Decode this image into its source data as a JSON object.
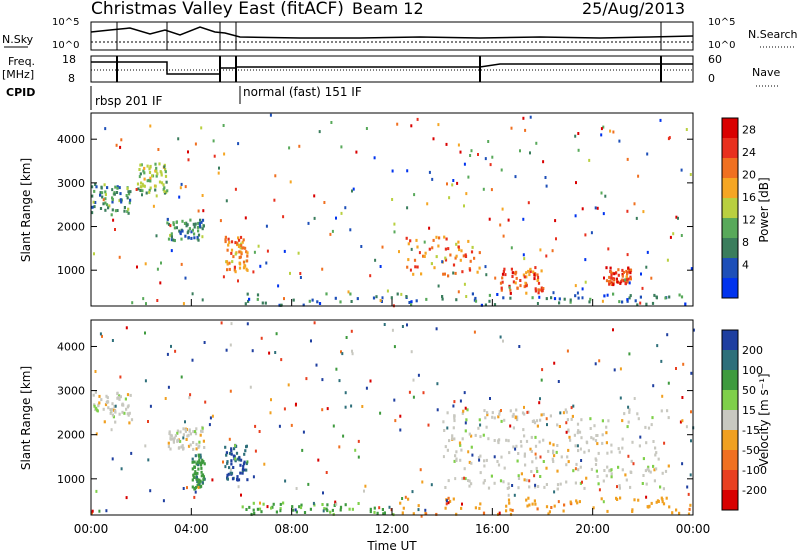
{
  "header": {
    "title": "Christmas Valley East (fitACF)",
    "beam": "Beam 12",
    "date": "25/Aug/2013"
  },
  "strip": {
    "nsky_label": "N.Sky",
    "nsky_ticks": [
      "10^5",
      "10^0"
    ],
    "nsearch_label": "N.Search",
    "nsearch_ticks": [
      "10^5",
      "10^0"
    ],
    "freq_label": "Freq.",
    "freq_unit": "[MHz]",
    "freq_ticks": [
      "18",
      "8"
    ],
    "nave_label": "Nave",
    "nave_ticks": [
      "60",
      "0"
    ],
    "cpid_label": "CPID",
    "modes": [
      "rbsp 201 IF",
      "normal (fast) 151 IF"
    ]
  },
  "axes": {
    "ylabel": "Slant Range [km]",
    "xlabel": "Time UT",
    "xticks": [
      "00:00",
      "04:00",
      "08:00",
      "12:00",
      "16:00",
      "20:00",
      "00:00"
    ],
    "yticks": [
      "1000",
      "2000",
      "3000",
      "4000"
    ]
  },
  "colorbars": {
    "power_label": "Power [dB]",
    "power_ticks": [
      "28",
      "24",
      "20",
      "16",
      "12",
      "8",
      "4"
    ],
    "velocity_label": "Velocity [m s⁻¹]",
    "velocity_ticks": [
      "200",
      "100",
      "50",
      "15",
      "-15",
      "-50",
      "-100",
      "-200"
    ]
  },
  "chart_data": [
    {
      "type": "heatmap",
      "panel": "power",
      "xlabel": "Time UT",
      "ylabel": "Slant Range [km]",
      "xlim": [
        0,
        24
      ],
      "ylim": [
        180,
        4600
      ],
      "colorbar": {
        "label": "Power [dB]",
        "range": [
          0,
          32
        ]
      },
      "scatter_regions": [
        {
          "t": [
            0.0,
            1.6
          ],
          "r": [
            2300,
            3000
          ],
          "value": 10
        },
        {
          "t": [
            1.8,
            3.0
          ],
          "r": [
            2800,
            3500
          ],
          "value": 14
        },
        {
          "t": [
            3.0,
            4.5
          ],
          "r": [
            1700,
            2200
          ],
          "value": 10
        },
        {
          "t": [
            5.3,
            6.2
          ],
          "r": [
            1000,
            1800
          ],
          "value": 22
        },
        {
          "t": [
            6.0,
            24.0
          ],
          "r": [
            200,
            500
          ],
          "value": 8
        },
        {
          "t": [
            12.5,
            15.5
          ],
          "r": [
            900,
            1800
          ],
          "value": 22
        },
        {
          "t": [
            16.3,
            18.0
          ],
          "r": [
            500,
            1100
          ],
          "value": 24
        },
        {
          "t": [
            20.5,
            21.5
          ],
          "r": [
            700,
            1100
          ],
          "value": 26
        }
      ]
    },
    {
      "type": "heatmap",
      "panel": "velocity",
      "xlabel": "Time UT",
      "ylabel": "Slant Range [km]",
      "xlim": [
        0,
        24
      ],
      "ylim": [
        180,
        4600
      ],
      "colorbar": {
        "label": "Velocity [m s⁻¹]",
        "range": [
          -250,
          250
        ]
      },
      "scatter_regions": [
        {
          "t": [
            0.0,
            1.6
          ],
          "r": [
            2300,
            3000
          ],
          "value": 0
        },
        {
          "t": [
            3.0,
            4.5
          ],
          "r": [
            1700,
            2200
          ],
          "value": 0
        },
        {
          "t": [
            5.3,
            6.2
          ],
          "r": [
            1000,
            1800
          ],
          "value": 150
        },
        {
          "t": [
            4.0,
            4.5
          ],
          "r": [
            800,
            1600
          ],
          "value": 60
        },
        {
          "t": [
            6.0,
            12.0
          ],
          "r": [
            200,
            500
          ],
          "value": 40
        },
        {
          "t": [
            12.0,
            24.0
          ],
          "r": [
            200,
            600
          ],
          "value": -40
        },
        {
          "t": [
            14.0,
            23.0
          ],
          "r": [
            800,
            2600
          ],
          "value": 0
        }
      ]
    }
  ]
}
